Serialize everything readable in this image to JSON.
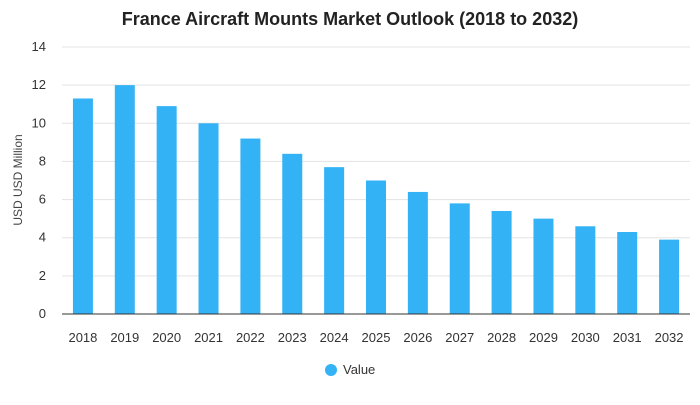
{
  "chart_data": {
    "type": "bar",
    "title": "France Aircraft Mounts Market Outlook (2018 to 2032)",
    "xlabel": "",
    "ylabel": "USD USD Million",
    "categories": [
      "2018",
      "2019",
      "2020",
      "2021",
      "2022",
      "2023",
      "2024",
      "2025",
      "2026",
      "2027",
      "2028",
      "2029",
      "2030",
      "2031",
      "2032"
    ],
    "series": [
      {
        "name": "Value",
        "values": [
          11.3,
          12.0,
          10.9,
          10.0,
          9.2,
          8.4,
          7.7,
          7.0,
          6.4,
          5.8,
          5.4,
          5.0,
          4.6,
          4.3,
          3.9
        ]
      }
    ],
    "ylim": [
      0,
      14
    ],
    "yticks": [
      "0",
      "2",
      "4",
      "6",
      "8",
      "10",
      "12",
      "14"
    ],
    "grid": true,
    "legend_position": "bottom-center",
    "bar_color": "#33b2f5"
  }
}
